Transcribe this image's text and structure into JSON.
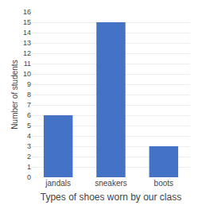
{
  "chart_data": {
    "type": "bar",
    "title": "Types of shoes worn by our class",
    "ylabel": "Number of students",
    "categories": [
      "jandals",
      "sneakers",
      "boots"
    ],
    "values": [
      6,
      15,
      3
    ],
    "color": "#4472C4",
    "ylim": [
      0,
      16
    ],
    "yticks": [
      0,
      1,
      2,
      3,
      4,
      5,
      6,
      7,
      8,
      9,
      10,
      11,
      12,
      13,
      14,
      15,
      16
    ],
    "grid": true
  }
}
